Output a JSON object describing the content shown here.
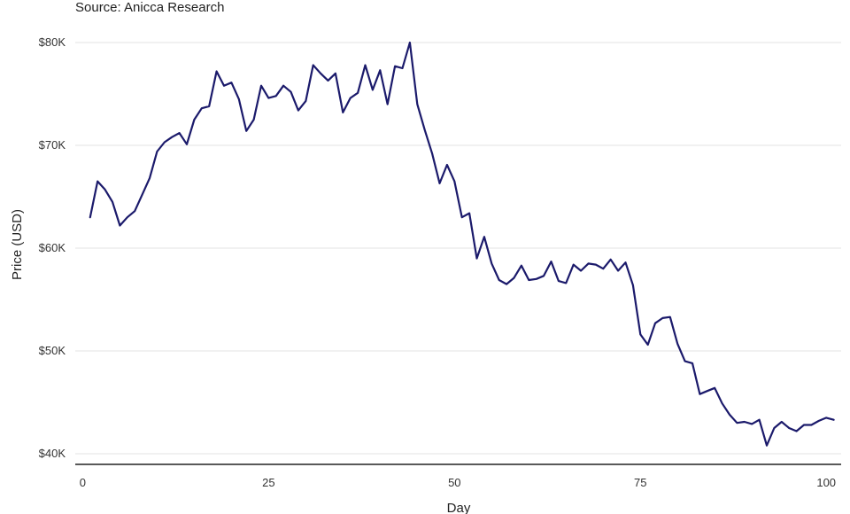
{
  "chart_data": {
    "type": "line",
    "subtitle": "Source: Anicca Research",
    "xlabel": "Day",
    "ylabel": "Price (USD)",
    "xlim": [
      -1,
      102
    ],
    "ylim": [
      40000,
      80000
    ],
    "x_ticks": [
      0,
      25,
      50,
      75,
      100
    ],
    "x_tick_labels": [
      "0",
      "25",
      "50",
      "75",
      "100"
    ],
    "y_ticks": [
      40000,
      50000,
      60000,
      70000,
      80000
    ],
    "y_tick_labels": [
      "$40K",
      "$50K",
      "$60K",
      "$70K",
      "$80K"
    ],
    "grid": "horizontal",
    "line_color": "#1b1a6b",
    "series": [
      {
        "x": [
          1,
          2,
          3,
          4,
          5,
          6,
          7,
          8,
          9,
          10,
          11,
          12,
          13,
          14,
          15,
          16,
          17,
          18,
          19,
          20,
          21,
          22,
          23,
          24,
          25,
          26,
          27,
          28,
          29,
          30,
          31,
          32,
          33,
          34,
          35,
          36,
          37,
          38,
          39,
          40,
          41,
          42,
          43,
          44,
          45,
          46,
          47,
          48,
          49,
          50,
          51,
          52,
          53,
          54,
          55,
          56,
          57,
          58,
          59,
          60,
          61,
          62,
          63,
          64,
          65,
          66,
          67,
          68,
          69,
          70,
          71,
          72,
          73,
          74,
          75,
          76,
          77,
          78,
          79,
          80,
          81,
          82,
          83,
          84,
          85,
          86,
          87,
          88,
          89,
          90,
          91,
          92,
          93,
          94,
          95,
          96,
          97,
          98,
          99,
          100,
          101
        ],
        "values": [
          63000,
          66500,
          65700,
          64500,
          62200,
          63000,
          63600,
          65200,
          66800,
          69400,
          70300,
          70800,
          71200,
          70100,
          72500,
          73600,
          73800,
          77200,
          75800,
          76100,
          74500,
          71400,
          72500,
          75800,
          74600,
          74800,
          75800,
          75200,
          73400,
          74300,
          77800,
          77000,
          76300,
          77000,
          73200,
          74600,
          75100,
          77800,
          75400,
          77300,
          74000,
          77700,
          77500,
          80000,
          74000,
          71500,
          69200,
          66300,
          68100,
          66500,
          63000,
          63400,
          59000,
          61100,
          58500,
          56900,
          56500,
          57100,
          58300,
          56900,
          57000,
          57300,
          58700,
          56800,
          56600,
          58400,
          57800,
          58500,
          58400,
          58000,
          58900,
          57800,
          58600,
          56400,
          51600,
          50600,
          52700,
          53200,
          53300,
          50700,
          49000,
          48800,
          45800,
          46100,
          46400,
          44900,
          43800,
          43000,
          43100,
          42900,
          43300,
          40800,
          42500,
          43100,
          42500,
          42200,
          42800,
          42800,
          43200,
          43500,
          43300
        ]
      }
    ]
  }
}
